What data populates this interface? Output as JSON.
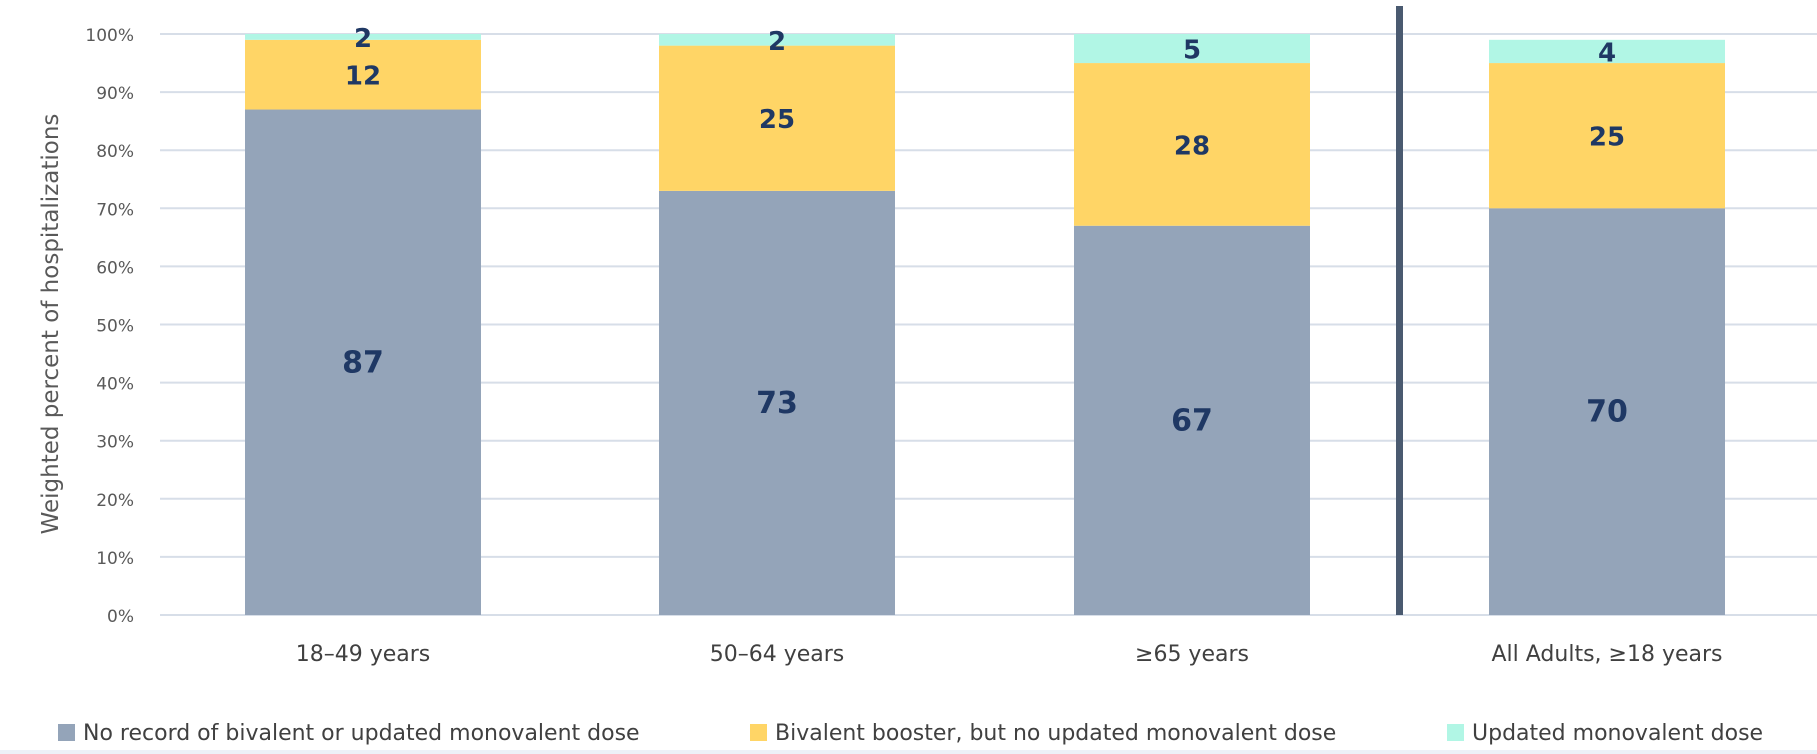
{
  "chart_data": {
    "type": "bar",
    "stacked": true,
    "ylabel": "Weighted percent of hospitalizations",
    "xlabel": "",
    "ylim": [
      0,
      100
    ],
    "y_ticks": [
      "0%",
      "10%",
      "20%",
      "30%",
      "40%",
      "50%",
      "60%",
      "70%",
      "80%",
      "90%",
      "100%"
    ],
    "categories": [
      "18–49 years",
      "50–64 years",
      "≥65 years",
      "All Adults, ≥18 years"
    ],
    "series": [
      {
        "name": "No record of  bivalent or updated monovalent dose",
        "values": [
          87,
          73,
          67,
          70
        ],
        "color": "#94a4b9"
      },
      {
        "name": "Bivalent booster, but no updated monovalent dose",
        "values": [
          12,
          25,
          28,
          25
        ],
        "color": "#ffd566"
      },
      {
        "name": "Updated monovalent dose",
        "values": [
          2,
          2,
          5,
          4
        ],
        "color": "#b1f6e5"
      }
    ],
    "grid": true,
    "legend_position": "bottom",
    "divider_before_category": "All Adults, ≥18 years"
  }
}
